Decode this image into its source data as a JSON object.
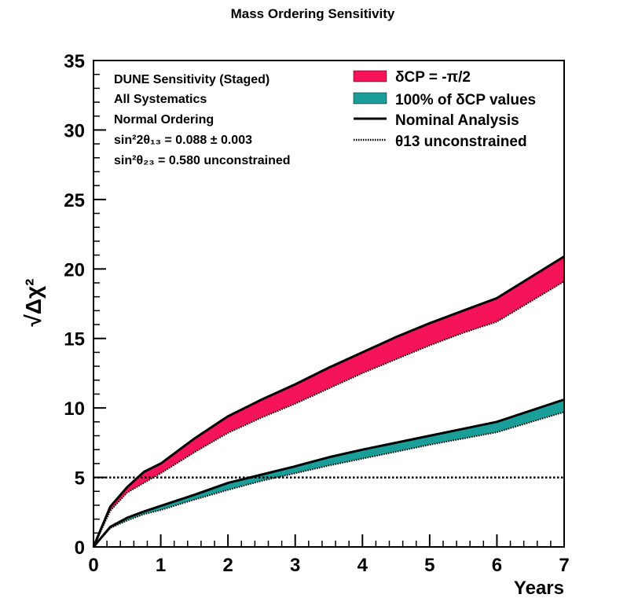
{
  "chart_data": {
    "type": "area",
    "title": "Mass Ordering Sensitivity",
    "xlabel": "Years",
    "ylabel": "√Δχ²",
    "xlim": [
      0,
      7
    ],
    "ylim": [
      0,
      35
    ],
    "x_ticks": [
      0,
      1,
      2,
      3,
      4,
      5,
      6,
      7
    ],
    "y_ticks": [
      0,
      5,
      10,
      15,
      20,
      25,
      30,
      35
    ],
    "grid": false,
    "legend_position": "top-right",
    "reference_line": {
      "y": 5,
      "style": "dotted"
    },
    "info_text": [
      "DUNE Sensitivity (Staged)",
      "All Systematics",
      "Normal Ordering",
      "sin²2θ₁₃ = 0.088 ± 0.003",
      "sin²θ₂₃ = 0.580 unconstrained"
    ],
    "legend": [
      {
        "label": "δCP = -π/2",
        "kind": "fill",
        "color": "#f5145a"
      },
      {
        "label": "100% of δCP values",
        "kind": "fill",
        "color": "#1a9e9a"
      },
      {
        "label": "Nominal Analysis",
        "kind": "solid"
      },
      {
        "label": "θ13 unconstrained",
        "kind": "dotted"
      }
    ],
    "x": [
      0,
      0.25,
      0.5,
      0.75,
      1,
      1.5,
      2,
      2.5,
      3,
      3.5,
      4,
      4.5,
      5,
      5.5,
      6,
      7
    ],
    "series": [
      {
        "name": "δCP = -π/2",
        "color": "#f5145a",
        "upper": [
          0,
          2.9,
          4.3,
          5.4,
          6.0,
          7.8,
          9.4,
          10.6,
          11.7,
          12.9,
          14.0,
          15.1,
          16.1,
          17.0,
          17.9,
          20.9
        ],
        "lower": [
          0,
          2.6,
          3.9,
          4.6,
          5.3,
          6.8,
          8.2,
          9.3,
          10.3,
          11.4,
          12.5,
          13.5,
          14.5,
          15.4,
          16.2,
          19.1
        ]
      },
      {
        "name": "100% of δCP values",
        "color": "#1a9e9a",
        "upper": [
          0,
          1.45,
          2.1,
          2.55,
          2.95,
          3.75,
          4.6,
          5.2,
          5.8,
          6.45,
          7.0,
          7.5,
          8.0,
          8.5,
          9.0,
          10.6
        ],
        "lower": [
          0,
          1.35,
          1.9,
          2.35,
          2.65,
          3.4,
          4.1,
          4.75,
          5.3,
          5.85,
          6.35,
          6.85,
          7.35,
          7.8,
          8.25,
          9.7
        ]
      }
    ]
  }
}
